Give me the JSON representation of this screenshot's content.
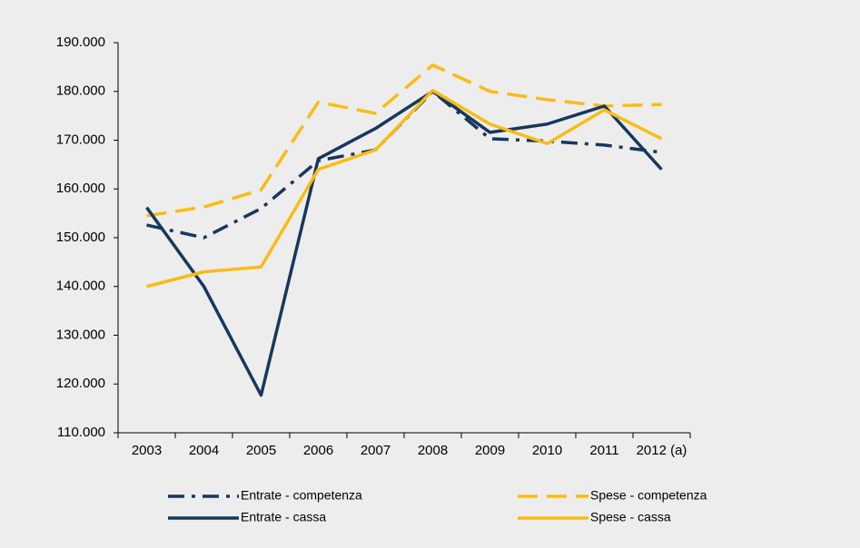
{
  "chart_data": {
    "type": "line",
    "categories": [
      "2003",
      "2004",
      "2005",
      "2006",
      "2007",
      "2008",
      "2009",
      "2010",
      "2011",
      "2012 (a)"
    ],
    "ylim": [
      110000,
      190000
    ],
    "yticks": [
      {
        "value": 110000,
        "label": "110.000"
      },
      {
        "value": 120000,
        "label": "120.000"
      },
      {
        "value": 130000,
        "label": "130.000"
      },
      {
        "value": 140000,
        "label": "140.000"
      },
      {
        "value": 150000,
        "label": "150.000"
      },
      {
        "value": 160000,
        "label": "160.000"
      },
      {
        "value": 170000,
        "label": "170.000"
      },
      {
        "value": 180000,
        "label": "180.000"
      },
      {
        "value": 190000,
        "label": "190.000"
      }
    ],
    "legend": "bottom",
    "series": [
      {
        "name": "Entrate - competenza",
        "color": "#17375e",
        "dash": "dashdot",
        "values": [
          152600,
          150000,
          156000,
          165800,
          168000,
          180000,
          170300,
          169800,
          169000,
          167500
        ]
      },
      {
        "name": "Spese - competenza",
        "color": "#f9bc15",
        "dash": "dash",
        "values": [
          154500,
          156300,
          159800,
          177800,
          175500,
          185400,
          180000,
          178300,
          177000,
          177300
        ]
      },
      {
        "name": "Entrate - cassa",
        "color": "#17375e",
        "dash": "solid",
        "values": [
          156200,
          140000,
          117700,
          166200,
          172400,
          180000,
          171600,
          173300,
          177000,
          164000
        ]
      },
      {
        "name": "Spese - cassa",
        "color": "#f9bc15",
        "dash": "solid",
        "values": [
          140000,
          143000,
          144000,
          164000,
          168000,
          180200,
          173300,
          169300,
          176200,
          170300
        ]
      }
    ]
  }
}
